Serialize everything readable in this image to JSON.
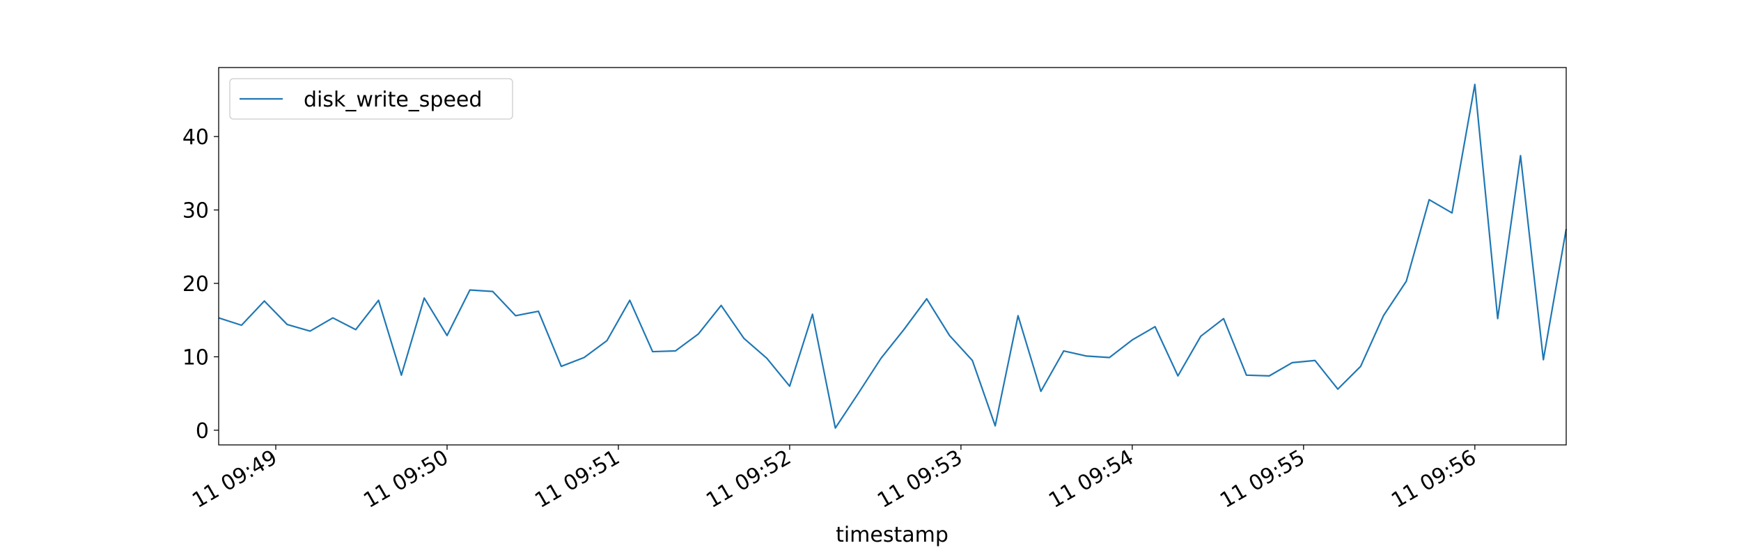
{
  "chart_data": {
    "type": "line",
    "xlabel": "timestamp",
    "x": [
      "11 09:48:40",
      "11 09:48:48",
      "11 09:48:56",
      "11 09:49:04",
      "11 09:49:12",
      "11 09:49:20",
      "11 09:49:28",
      "11 09:49:36",
      "11 09:49:44",
      "11 09:49:52",
      "11 09:50:00",
      "11 09:50:08",
      "11 09:50:16",
      "11 09:50:24",
      "11 09:50:32",
      "11 09:50:40",
      "11 09:50:48",
      "11 09:50:56",
      "11 09:51:04",
      "11 09:51:12",
      "11 09:51:20",
      "11 09:51:28",
      "11 09:51:36",
      "11 09:51:44",
      "11 09:51:52",
      "11 09:52:00",
      "11 09:52:08",
      "11 09:52:16",
      "11 09:52:24",
      "11 09:52:32",
      "11 09:52:40",
      "11 09:52:48",
      "11 09:52:56",
      "11 09:53:04",
      "11 09:53:12",
      "11 09:53:20",
      "11 09:53:28",
      "11 09:53:36",
      "11 09:53:44",
      "11 09:53:52",
      "11 09:54:00",
      "11 09:54:08",
      "11 09:54:16",
      "11 09:54:24",
      "11 09:54:32",
      "11 09:54:40",
      "11 09:54:48",
      "11 09:54:56",
      "11 09:55:04",
      "11 09:55:12",
      "11 09:55:20",
      "11 09:55:28",
      "11 09:55:36",
      "11 09:55:44",
      "11 09:55:52",
      "11 09:56:00",
      "11 09:56:08",
      "11 09:56:16",
      "11 09:56:24",
      "11 09:56:32"
    ],
    "series": [
      {
        "name": "disk_write_speed",
        "color": "#1f77b4",
        "values": [
          15.3,
          14.3,
          17.6,
          14.4,
          13.5,
          15.3,
          13.7,
          17.7,
          7.5,
          18.0,
          12.9,
          19.1,
          18.9,
          15.6,
          16.2,
          8.7,
          9.9,
          12.2,
          17.7,
          10.7,
          10.8,
          13.1,
          17.0,
          12.5,
          9.8,
          6.0,
          15.8,
          0.3,
          5.0,
          9.8,
          13.7,
          17.9,
          12.9,
          9.5,
          0.6,
          15.6,
          5.3,
          10.8,
          10.1,
          9.9,
          12.3,
          14.1,
          7.4,
          12.8,
          15.2,
          7.5,
          7.4,
          9.2,
          9.5,
          5.6,
          8.7,
          15.6,
          20.3,
          31.4,
          29.6,
          47.1,
          15.2,
          37.4,
          9.6,
          27.4
        ]
      }
    ],
    "xlim": [
      "11 09:48:40",
      "11 09:56:32"
    ],
    "xticks": [
      "11 09:49",
      "11 09:50",
      "11 09:51",
      "11 09:52",
      "11 09:53",
      "11 09:54",
      "11 09:55",
      "11 09:56"
    ],
    "ylim": [
      -2,
      49.4
    ],
    "yticks": [
      0,
      10,
      20,
      30,
      40
    ],
    "legend": "upper left"
  }
}
